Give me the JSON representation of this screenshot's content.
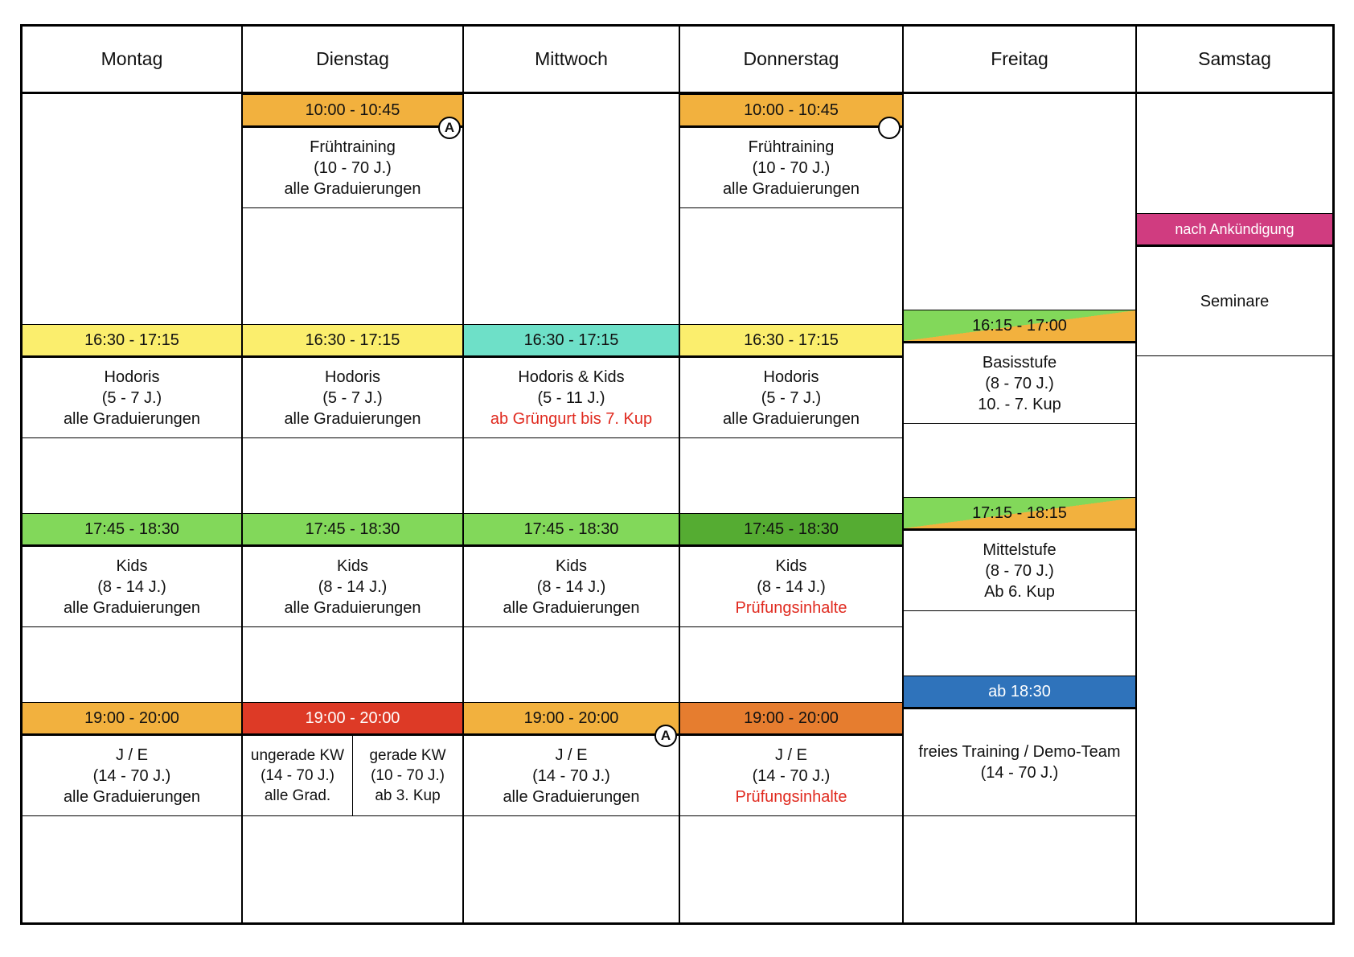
{
  "days": [
    "Montag",
    "Dienstag",
    "Mittwoch",
    "Donnerstag",
    "Freitag",
    "Samstag"
  ],
  "badges": {
    "a": "A"
  },
  "mon": {
    "s1": {
      "time": "16:30 - 17:15",
      "l1": "Hodoris",
      "l2": "(5 - 7 J.)",
      "l3": "alle Graduierungen"
    },
    "s2": {
      "time": "17:45 - 18:30",
      "l1": "Kids",
      "l2": "(8 - 14 J.)",
      "l3": "alle Graduierungen"
    },
    "s3": {
      "time": "19:00 - 20:00",
      "l1": "J / E",
      "l2": "(14 - 70 J.)",
      "l3": "alle Graduierungen"
    }
  },
  "tue": {
    "s0": {
      "time": "10:00 - 10:45",
      "l1": "Frühtraining",
      "l2": "(10 - 70 J.)",
      "l3": "alle Graduierungen"
    },
    "s1": {
      "time": "16:30 - 17:15",
      "l1": "Hodoris",
      "l2": "(5 - 7 J.)",
      "l3": "alle Graduierungen"
    },
    "s2": {
      "time": "17:45 - 18:30",
      "l1": "Kids",
      "l2": "(8 - 14 J.)",
      "l3": "alle Graduierungen"
    },
    "s3": {
      "time": "19:00 - 20:00",
      "left": {
        "l1": "ungerade KW",
        "l2": "(14 - 70 J.)",
        "l3": "alle Grad."
      },
      "right": {
        "l1": "gerade KW",
        "l2": "(10 - 70 J.)",
        "l3": "ab 3. Kup"
      }
    }
  },
  "wed": {
    "s1": {
      "time": "16:30 - 17:15",
      "l1": "Hodoris & Kids",
      "l2": "(5 - 11 J.)",
      "l3": "ab Grüngurt bis 7. Kup"
    },
    "s2": {
      "time": "17:45 - 18:30",
      "l1": "Kids",
      "l2": "(8 - 14 J.)",
      "l3": "alle Graduierungen"
    },
    "s3": {
      "time": "19:00 - 20:00",
      "l1": "J / E",
      "l2": "(14 - 70 J.)",
      "l3": "alle Graduierungen"
    }
  },
  "thu": {
    "s0": {
      "time": "10:00 - 10:45",
      "l1": "Frühtraining",
      "l2": "(10 - 70 J.)",
      "l3": "alle Graduierungen"
    },
    "s1": {
      "time": "16:30 - 17:15",
      "l1": "Hodoris",
      "l2": "(5 - 7 J.)",
      "l3": "alle Graduierungen"
    },
    "s2": {
      "time": "17:45 - 18:30",
      "l1": "Kids",
      "l2": "(8 - 14 J.)",
      "l3": "Prüfungsinhalte"
    },
    "s3": {
      "time": "19:00 - 20:00",
      "l1": "J / E",
      "l2": "(14 - 70 J.)",
      "l3": "Prüfungsinhalte"
    }
  },
  "fri": {
    "s1": {
      "time": "16:15 - 17:00",
      "l1": "Basisstufe",
      "l2": "(8 - 70 J.)",
      "l3": "10. - 7. Kup"
    },
    "s2": {
      "time": "17:15 - 18:15",
      "l1": "Mittelstufe",
      "l2": "(8 - 70 J.)",
      "l3": "Ab 6. Kup"
    },
    "s3": {
      "time": "ab 18:30",
      "l1": "freies Training / Demo-Team",
      "l2": "(14 - 70 J.)"
    }
  },
  "sat": {
    "time": "nach Ankündigung",
    "l1": "Seminare"
  },
  "colors": {
    "yellow": "#fbee6d",
    "orange": "#f2b13e",
    "teal": "#6ee0c8",
    "green": "#82d85a",
    "dark_green": "#55ac32",
    "red": "#dd3a26",
    "dark_orange": "#e67d2f",
    "blue": "#2f73bb",
    "pink": "#d03c80",
    "highlight_text": "#e02a1f"
  }
}
